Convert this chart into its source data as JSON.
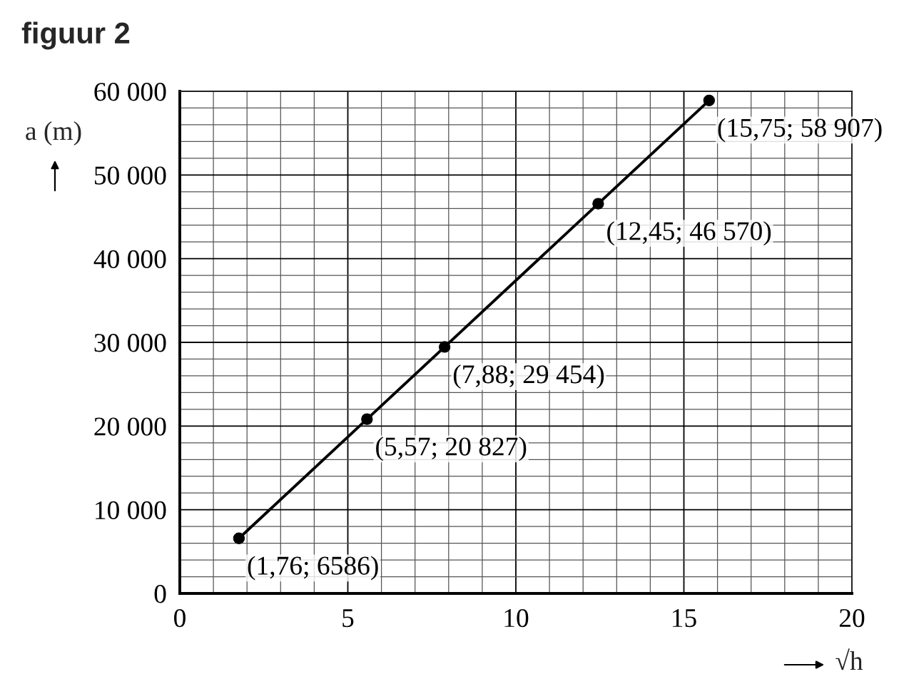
{
  "chart_data": {
    "type": "line",
    "title": "figuur 2",
    "xlabel": "√h",
    "ylabel": "a (m)",
    "x": [
      1.76,
      5.57,
      7.88,
      12.45,
      15.75
    ],
    "series": [
      {
        "color": "#000000",
        "values": [
          6586,
          20827,
          29454,
          46570,
          58907
        ]
      }
    ],
    "xlim": [
      0,
      20
    ],
    "ylim": [
      0,
      60000
    ],
    "xticks": [
      0,
      {
        "value": 1,
        "label": null
      },
      {
        "value": 2,
        "label": null
      },
      {
        "value": 3,
        "label": null
      },
      {
        "value": 4,
        "label": null
      },
      5,
      {
        "value": 6,
        "label": null
      },
      {
        "value": 7,
        "label": null
      },
      {
        "value": 8,
        "label": null
      },
      {
        "value": 9,
        "label": null
      },
      10,
      {
        "value": 11,
        "label": null
      },
      {
        "value": 12,
        "label": null
      },
      {
        "value": 13,
        "label": null
      },
      {
        "value": 14,
        "label": null
      },
      15,
      {
        "value": 16,
        "label": null
      },
      {
        "value": 17,
        "label": null
      },
      {
        "value": 18,
        "label": null
      },
      {
        "value": 19,
        "label": null
      },
      20
    ],
    "yticks": [
      0,
      {
        "value": 2000,
        "label": null
      },
      {
        "value": 4000,
        "label": null
      },
      {
        "value": 6000,
        "label": null
      },
      {
        "value": 8000,
        "label": null
      },
      {
        "value": 10000,
        "label": "10 000"
      },
      {
        "value": 12000,
        "label": null
      },
      {
        "value": 14000,
        "label": null
      },
      {
        "value": 16000,
        "label": null
      },
      {
        "value": 18000,
        "label": null
      },
      {
        "value": 20000,
        "label": "20 000"
      },
      {
        "value": 22000,
        "label": null
      },
      {
        "value": 24000,
        "label": null
      },
      {
        "value": 26000,
        "label": null
      },
      {
        "value": 28000,
        "label": null
      },
      {
        "value": 30000,
        "label": "30 000"
      },
      {
        "value": 32000,
        "label": null
      },
      {
        "value": 34000,
        "label": null
      },
      {
        "value": 36000,
        "label": null
      },
      {
        "value": 38000,
        "label": null
      },
      {
        "value": 40000,
        "label": "40 000"
      },
      {
        "value": 42000,
        "label": null
      },
      {
        "value": 44000,
        "label": null
      },
      {
        "value": 46000,
        "label": null
      },
      {
        "value": 48000,
        "label": null
      },
      {
        "value": 50000,
        "label": "50 000"
      },
      {
        "value": 52000,
        "label": null
      },
      {
        "value": 54000,
        "label": null
      },
      {
        "value": 56000,
        "label": null
      },
      {
        "value": 58000,
        "label": null
      },
      {
        "value": 60000,
        "label": "60 000"
      }
    ],
    "grid": true,
    "marker": "circle",
    "line_style": "solid",
    "annotations": [
      {
        "text": "(1,76; 6586)",
        "x": 1.76,
        "y": 6586
      },
      {
        "text": "(5,57; 20 827)",
        "x": 5.57,
        "y": 20827
      },
      {
        "text": "(7,88; 29 454)",
        "x": 7.88,
        "y": 29454
      },
      {
        "text": "(12,45; 46 570)",
        "x": 12.45,
        "y": 46570
      },
      {
        "text": "(15,75; 58 907)",
        "x": 15.75,
        "y": 58907
      }
    ]
  }
}
